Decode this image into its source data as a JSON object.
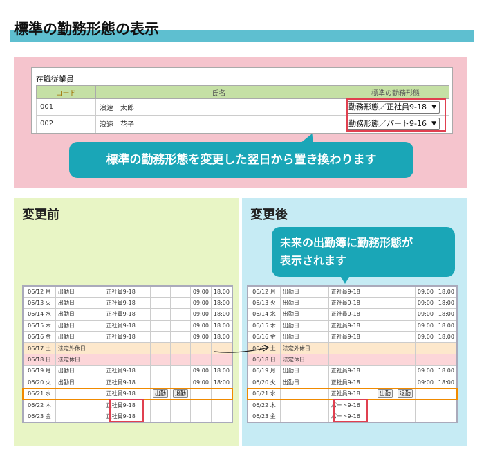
{
  "title": "標準の勤務形態の表示",
  "employees": {
    "caption": "在職従業員",
    "headers": [
      "コード",
      "氏名",
      "標準の勤務形態"
    ],
    "rows": [
      {
        "code": "001",
        "name": "浪速　太郎",
        "pattern": "勤務形態／正社員9-18"
      },
      {
        "code": "002",
        "name": "浪速　花子",
        "pattern": "勤務形態／パート9-16"
      }
    ]
  },
  "callout_top": "標準の勤務形態を変更した翌日から置き換わります",
  "callout_bottom": [
    "未来の出勤簿に勤務形態が",
    "表示されます"
  ],
  "buttons": {
    "clock_in": "出勤",
    "clock_out": "退勤"
  },
  "before": {
    "heading": "変更前",
    "rows": [
      [
        "06/12 月",
        "出勤日",
        "正社員9-18",
        "09:00",
        "18:00"
      ],
      [
        "06/13 火",
        "出勤日",
        "正社員9-18",
        "09:00",
        "18:00"
      ],
      [
        "06/14 水",
        "出勤日",
        "正社員9-18",
        "09:00",
        "18:00"
      ],
      [
        "06/15 木",
        "出勤日",
        "正社員9-18",
        "09:00",
        "18:00"
      ],
      [
        "06/16 金",
        "出勤日",
        "正社員9-18",
        "09:00",
        "18:00"
      ],
      [
        "06/17 土",
        "法定外休日",
        "",
        "",
        ""
      ],
      [
        "06/18 日",
        "法定休日",
        "",
        "",
        ""
      ],
      [
        "06/19 月",
        "出勤日",
        "正社員9-18",
        "09:00",
        "18:00"
      ],
      [
        "06/20 火",
        "出勤日",
        "正社員9-18",
        "09:00",
        "18:00"
      ],
      [
        "06/21 水",
        "",
        "正社員9-18",
        "",
        ""
      ],
      [
        "06/22 木",
        "",
        "正社員9-18",
        "",
        ""
      ],
      [
        "06/23 金",
        "",
        "正社員9-18",
        "",
        ""
      ]
    ]
  },
  "after": {
    "heading": "変更後",
    "rows": [
      [
        "06/12 月",
        "出勤日",
        "正社員9-18",
        "09:00",
        "18:00"
      ],
      [
        "06/13 火",
        "出勤日",
        "正社員9-18",
        "09:00",
        "18:00"
      ],
      [
        "06/14 水",
        "出勤日",
        "正社員9-18",
        "09:00",
        "18:00"
      ],
      [
        "06/15 木",
        "出勤日",
        "正社員9-18",
        "09:00",
        "18:00"
      ],
      [
        "06/16 金",
        "出勤日",
        "正社員9-18",
        "09:00",
        "18:00"
      ],
      [
        "06/17 土",
        "法定外休日",
        "",
        "",
        ""
      ],
      [
        "06/18 日",
        "法定休日",
        "",
        "",
        ""
      ],
      [
        "06/19 月",
        "出勤日",
        "正社員9-18",
        "09:00",
        "18:00"
      ],
      [
        "06/20 火",
        "出勤日",
        "正社員9-18",
        "09:00",
        "18:00"
      ],
      [
        "06/21 水",
        "",
        "正社員9-18",
        "",
        ""
      ],
      [
        "06/22 木",
        "",
        "パート9-16",
        "",
        ""
      ],
      [
        "06/23 金",
        "",
        "パート9-16",
        "",
        ""
      ]
    ]
  },
  "colors": {
    "accent": "#1aa6b7",
    "highlight": "#e04050",
    "today": "#f08a00"
  }
}
